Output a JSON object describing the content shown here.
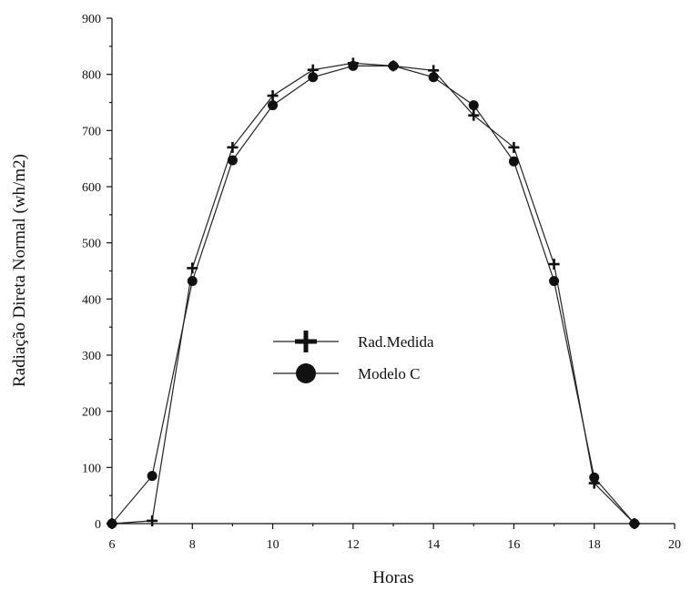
{
  "chart_data": {
    "type": "line",
    "xlabel": "Horas",
    "ylabel": "Radiação Direta Normal (wh/m2)",
    "xlim": [
      6,
      20
    ],
    "ylim": [
      0,
      900
    ],
    "xticks": [
      6,
      8,
      10,
      12,
      14,
      16,
      18,
      20
    ],
    "yticks": [
      0,
      100,
      200,
      300,
      400,
      500,
      600,
      700,
      800,
      900
    ],
    "grid": false,
    "legend_position": "center",
    "series": [
      {
        "name": "Rad.Medida",
        "marker": "plus",
        "x": [
          6,
          7,
          8,
          9,
          10,
          11,
          12,
          13,
          14,
          15,
          16,
          17,
          18,
          19
        ],
        "y": [
          0,
          5,
          455,
          670,
          762,
          808,
          820,
          815,
          807,
          727,
          670,
          462,
          72,
          0
        ]
      },
      {
        "name": "Modelo C",
        "marker": "circle",
        "x": [
          6,
          7,
          8,
          9,
          10,
          11,
          12,
          13,
          14,
          15,
          16,
          17,
          18,
          19
        ],
        "y": [
          0,
          85,
          432,
          647,
          745,
          795,
          815,
          815,
          795,
          745,
          645,
          432,
          82,
          0
        ]
      }
    ]
  }
}
